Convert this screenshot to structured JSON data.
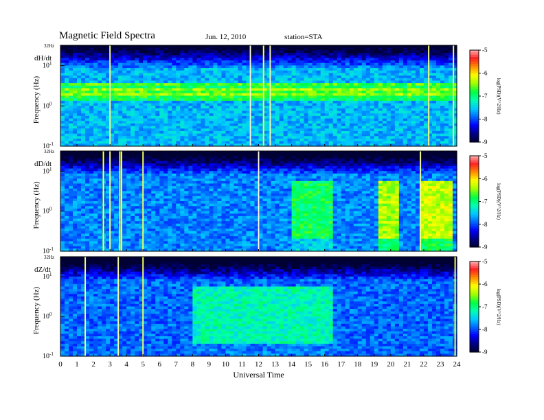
{
  "figure": {
    "title": "Magnetic  Field  Spectra",
    "date": "Jun. 12, 2010",
    "station": "station=STA"
  },
  "colors": {
    "scale": [
      "#000033",
      "#000088",
      "#0000ff",
      "#0066ff",
      "#00c8ff",
      "#00ffb0",
      "#00ff40",
      "#a0ff00",
      "#ffff00",
      "#ff9000",
      "#ff2020",
      "#ffb0b0"
    ]
  },
  "chart_data": [
    {
      "type": "heatmap",
      "panel_label": "dH/dt",
      "ylabel": "Frequency (Hz)",
      "yscale": "log",
      "ylim": [
        0.1,
        32
      ],
      "y_ticks": [
        "32Hz",
        "10",
        "1",
        "0.1"
      ],
      "xlim": [
        0,
        24
      ],
      "colorbar": {
        "label": "log(PSD)(V^2/Hz)",
        "range": [
          -9,
          -5
        ],
        "ticks": [
          "-5",
          "-6",
          "-7",
          "-8",
          "-9"
        ]
      },
      "background_level": -7.6,
      "spectral_bands": [
        {
          "freq_hz": 3.0,
          "level": -6.9
        },
        {
          "freq_hz": 2.2,
          "level": -6.7
        },
        {
          "freq_hz": 1.5,
          "level": -7.0
        },
        {
          "freq_hz": 0.25,
          "level": -8.2
        },
        {
          "freq_hz": 0.13,
          "level": -8.6
        }
      ],
      "transients_ut": [
        3.0,
        11.5,
        12.3,
        12.7,
        22.3,
        23.8
      ]
    },
    {
      "type": "heatmap",
      "panel_label": "dD/dt",
      "ylabel": "Frequency (Hz)",
      "yscale": "log",
      "ylim": [
        0.1,
        32
      ],
      "y_ticks": [
        "32Hz",
        "10",
        "1",
        "0.1"
      ],
      "xlim": [
        0,
        24
      ],
      "colorbar": {
        "label": "log(PSD)(V^2/Hz)",
        "range": [
          -9,
          -5
        ],
        "ticks": [
          "-5",
          "-6",
          "-7",
          "-8",
          "-9"
        ]
      },
      "background_level": -7.8,
      "enhanced_intervals": [
        {
          "ut": [
            14.0,
            16.5
          ],
          "level": -6.9
        },
        {
          "ut": [
            19.3,
            20.5
          ],
          "level": -6.4
        },
        {
          "ut": [
            21.8,
            23.8
          ],
          "level": -6.3
        }
      ],
      "transients_ut": [
        2.6,
        3.0,
        3.6,
        3.7,
        5.0,
        12.0,
        21.8
      ]
    },
    {
      "type": "heatmap",
      "panel_label": "dZ/dt",
      "ylabel": "Frequency (Hz)",
      "yscale": "log",
      "ylim": [
        0.1,
        32
      ],
      "y_ticks": [
        "32Hz",
        "10",
        "1",
        "0.1"
      ],
      "xlim": [
        0,
        24
      ],
      "colorbar": {
        "label": "log(PSD)(V^2/Hz)",
        "range": [
          -9,
          -5
        ],
        "ticks": [
          "-5",
          "-6",
          "-7",
          "-8",
          "-9"
        ]
      },
      "background_level": -7.9,
      "enhanced_intervals": [
        {
          "ut": [
            8.0,
            16.5
          ],
          "level": -7.2
        }
      ],
      "transients_ut": [
        1.5,
        3.5,
        5.0,
        23.9
      ]
    }
  ],
  "x_axis": {
    "label": "Universal Time",
    "ticks": [
      "0",
      "1",
      "2",
      "3",
      "4",
      "5",
      "6",
      "7",
      "8",
      "9",
      "10",
      "11",
      "12",
      "13",
      "14",
      "15",
      "16",
      "17",
      "18",
      "19",
      "20",
      "21",
      "22",
      "23",
      "24"
    ]
  }
}
